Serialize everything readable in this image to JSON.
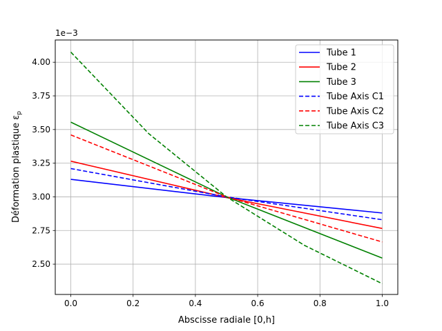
{
  "chart_data": {
    "type": "line",
    "title": "",
    "xlabel": "Abscisse radiale [0,h]",
    "ylabel": "Déformation plastique ε",
    "ylabel_subscript": "p",
    "y_offset_text": "1e−3",
    "xlim": [
      -0.05,
      1.05
    ],
    "ylim": [
      2.275,
      4.165
    ],
    "x_ticks": [
      0.0,
      0.2,
      0.4,
      0.6,
      0.8,
      1.0
    ],
    "x_tick_labels": [
      "0.0",
      "0.2",
      "0.4",
      "0.6",
      "0.8",
      "1.0"
    ],
    "y_ticks": [
      2.5,
      2.75,
      3.0,
      3.25,
      3.5,
      3.75,
      4.0
    ],
    "y_tick_labels": [
      "2.50",
      "2.75",
      "3.00",
      "3.25",
      "3.50",
      "3.75",
      "4.00"
    ],
    "grid": true,
    "legend_position": "top-right",
    "series": [
      {
        "name": "Tube 1",
        "color": "#0000ff",
        "dashed": false,
        "x": [
          0.0,
          0.5,
          1.0
        ],
        "y": [
          3.13,
          2.995,
          2.88
        ]
      },
      {
        "name": "Tube 2",
        "color": "#ff0000",
        "dashed": false,
        "x": [
          0.0,
          0.5,
          1.0
        ],
        "y": [
          3.265,
          2.995,
          2.765
        ]
      },
      {
        "name": "Tube 3",
        "color": "#008000",
        "dashed": false,
        "x": [
          0.0,
          0.5,
          1.0
        ],
        "y": [
          3.555,
          3.0,
          2.545
        ]
      },
      {
        "name": "Tube Axis C1",
        "color": "#0000ff",
        "dashed": true,
        "x": [
          0.0,
          0.5,
          1.0
        ],
        "y": [
          3.21,
          3.0,
          2.83
        ]
      },
      {
        "name": "Tube Axis C2",
        "color": "#ff0000",
        "dashed": true,
        "x": [
          0.0,
          0.5,
          1.0
        ],
        "y": [
          3.46,
          3.0,
          2.665
        ]
      },
      {
        "name": "Tube Axis C3",
        "color": "#008000",
        "dashed": true,
        "x": [
          0.0,
          0.25,
          0.5,
          0.75,
          1.0
        ],
        "y": [
          4.075,
          3.47,
          3.0,
          2.64,
          2.355
        ]
      }
    ]
  }
}
